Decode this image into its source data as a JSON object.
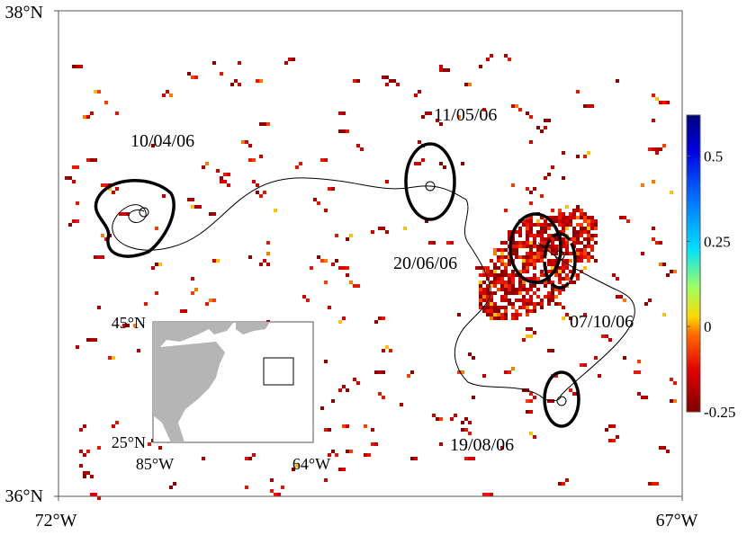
{
  "map": {
    "axes": {
      "lat_top": "38°N",
      "lat_bottom": "36°N",
      "lon_left": "72°W",
      "lon_right": "67°W"
    },
    "eddy_dates": [
      "10/04/06",
      "11/05/06",
      "20/06/06",
      "07/10/06",
      "19/08/06"
    ],
    "inset": {
      "lat_top": "45°N",
      "lat_bottom": "25°N",
      "lon_left": "85°W",
      "lon_right": "64°W"
    },
    "colorbar": {
      "lim": [
        -0.25,
        0.62
      ],
      "ticks": [
        0.5,
        0.25,
        0,
        -0.25
      ]
    }
  }
}
